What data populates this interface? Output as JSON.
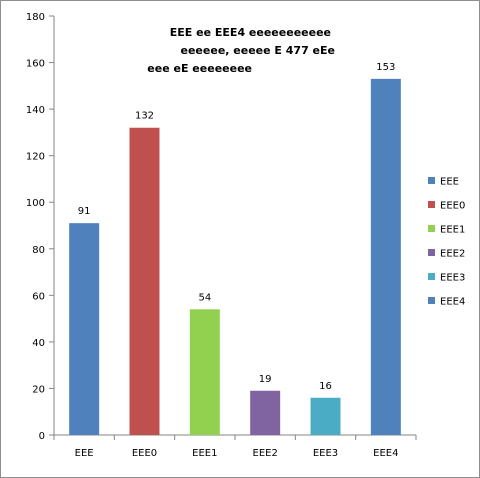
{
  "chart_data": {
    "type": "bar",
    "title_lines": [
      "EEE ee EEE4  eeeeeeeeeee",
      "eeeeee, eeeee E 477  eEe",
      "eee eE eeeeeeee"
    ],
    "categories": [
      "EEE",
      "EEE0",
      "EEE1",
      "EEE2",
      "EEE3",
      "EEE4"
    ],
    "values": [
      91,
      132,
      54,
      19,
      16,
      153
    ],
    "colors": [
      "#4f81bd",
      "#c0504d",
      "#92d050",
      "#8064a2",
      "#4bacc6",
      "#4f81bd"
    ],
    "data_labels": [
      "91",
      "132",
      "54",
      "19",
      "16",
      "153"
    ],
    "ylim": [
      0,
      180
    ],
    "yticks": [
      0,
      20,
      40,
      60,
      80,
      100,
      120,
      140,
      160,
      180
    ],
    "grid": false,
    "legend": {
      "placement": "right",
      "entries": [
        "EEE",
        "EEE0",
        "EEE1",
        "EEE2",
        "EEE3",
        "EEE4"
      ]
    }
  }
}
